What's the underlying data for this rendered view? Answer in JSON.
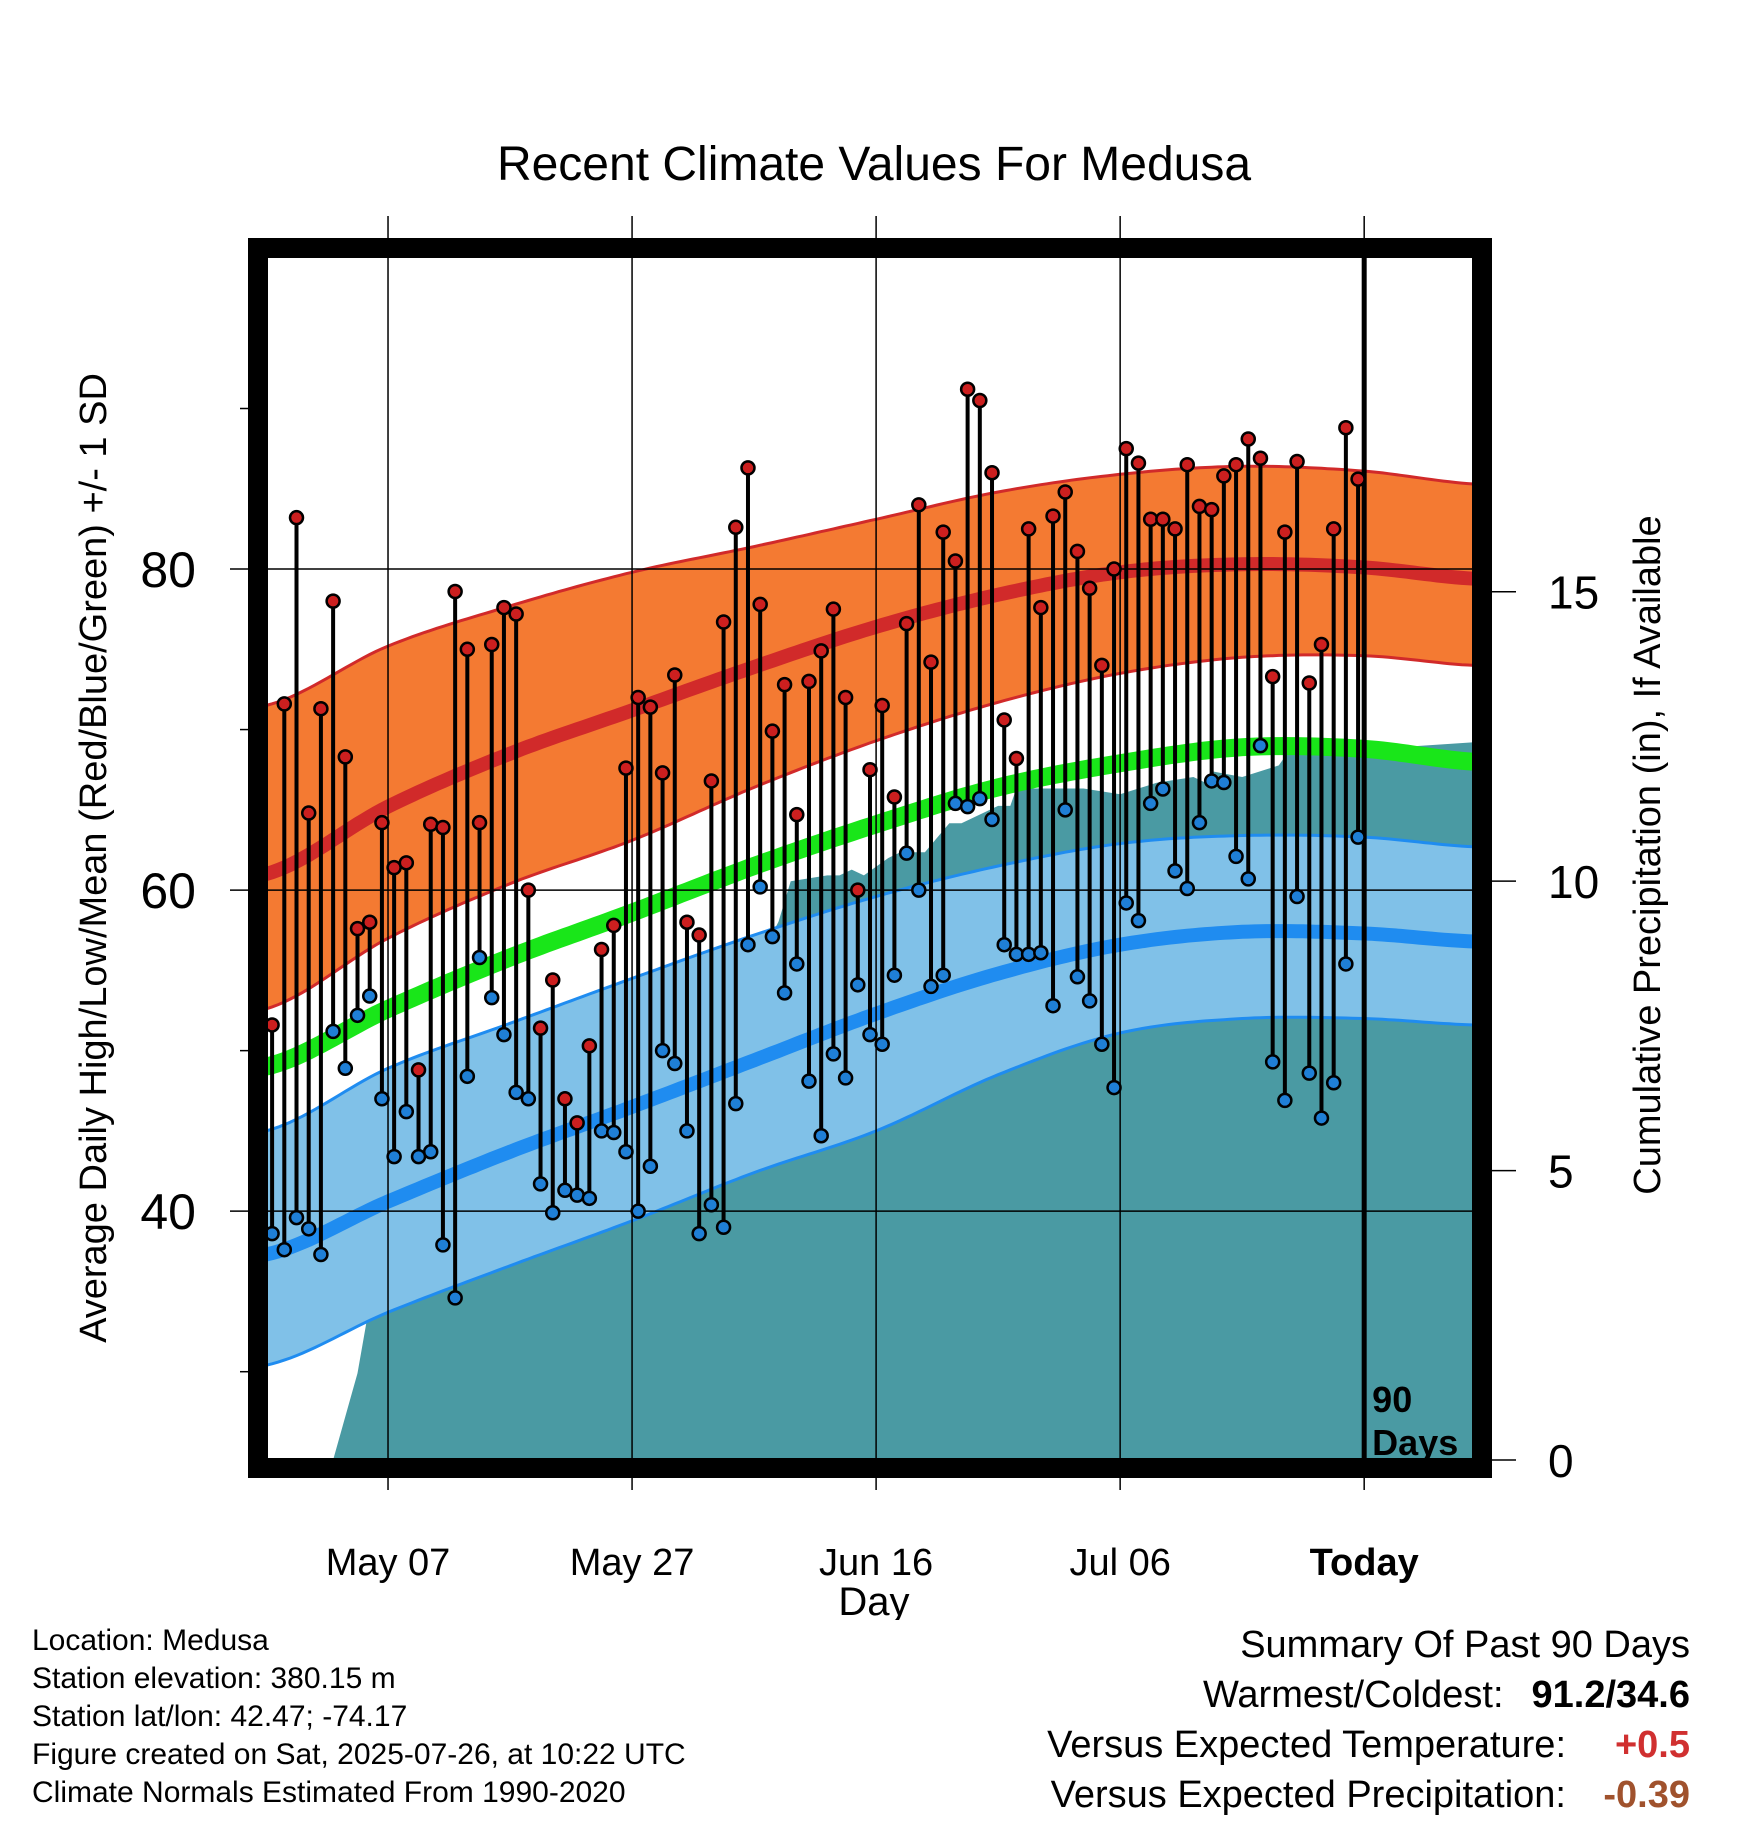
{
  "chart_data": {
    "type": "line",
    "title": "Recent Climate Values For Medusa",
    "xlabel": "Day",
    "ylabel": "Average Daily High/Low/Mean (Red/Blue/Green) +/- 1 SD",
    "y2label": "Cumulative Precipitation (in), If Available",
    "ylim": [
      24.5,
      99.5
    ],
    "y2lim": [
      0,
      20.8
    ],
    "y_ticks": [
      40,
      60,
      80
    ],
    "y2_ticks": [
      0,
      5,
      10,
      15
    ],
    "x_ticks": [
      "May 07",
      "May 27",
      "Jun 16",
      "Jul 06",
      "Today"
    ],
    "x_tick_days": [
      -80,
      -60,
      -40,
      -20,
      0
    ],
    "x_range_days": [
      -90,
      9
    ],
    "today_marker": {
      "line1": "90",
      "line2": "Days"
    },
    "colors": {
      "high_band": "#f47a32",
      "high_mean": "#d12a2a",
      "low_band": "#80c1e8",
      "low_mean": "#1f8cf0",
      "mean": "#19e619",
      "precip": "#4a9aa3",
      "high_point": "#cc1f1f",
      "low_point": "#1f7fd6"
    },
    "normals": {
      "days": [
        -90,
        -80,
        -70,
        -60,
        -50,
        -40,
        -30,
        -20,
        -10,
        0,
        9
      ],
      "high_mean": [
        61,
        65.2,
        68.5,
        71.2,
        73.9,
        76.4,
        78.4,
        79.8,
        80.3,
        80.1,
        79.4
      ],
      "high_upper": [
        71.5,
        75.2,
        77.7,
        79.8,
        81.4,
        83.1,
        84.8,
        85.9,
        86.4,
        86.1,
        85.3
      ],
      "high_lower": [
        52.6,
        57,
        60.4,
        63.1,
        66.4,
        69.3,
        71.7,
        73.5,
        74.5,
        74.6,
        74
      ],
      "mean": [
        49,
        52.6,
        55.8,
        58.6,
        61.5,
        64.1,
        66.4,
        67.9,
        68.9,
        68.8,
        68
      ],
      "low_mean": [
        37.3,
        40.6,
        43.7,
        46.5,
        49.4,
        52.3,
        54.8,
        56.6,
        57.4,
        57.3,
        56.8
      ],
      "low_upper": [
        45,
        48.9,
        51.7,
        54.5,
        57.2,
        59.6,
        61.5,
        62.9,
        63.4,
        63.3,
        62.7
      ],
      "low_lower": [
        30.4,
        33.7,
        36.6,
        39.4,
        42.4,
        45,
        48.5,
        51.1,
        52,
        52,
        51.6
      ]
    },
    "series": [
      {
        "name": "High",
        "values": [
          51.6,
          71.6,
          83.2,
          64.8,
          71.3,
          78.0,
          68.3,
          57.6,
          58.0,
          64.2,
          61.4,
          61.7,
          48.8,
          64.1,
          63.9,
          78.6,
          75.0,
          64.2,
          75.3,
          77.6,
          77.2,
          60.0,
          51.4,
          54.4,
          47.0,
          45.5,
          50.3,
          56.3,
          57.8,
          67.6,
          72.0,
          71.4,
          67.3,
          73.4,
          58.0,
          57.2,
          66.8,
          76.7,
          82.6,
          86.3,
          77.8,
          69.9,
          72.8,
          64.7,
          73.0,
          74.9,
          77.5,
          72.0,
          60.0,
          67.5,
          71.5,
          65.8,
          76.6,
          84.0,
          74.2,
          82.3,
          80.5,
          91.2,
          90.5,
          86.0,
          70.6,
          68.2,
          82.5,
          77.6,
          83.3,
          84.8,
          81.1,
          78.8,
          74.0,
          80.0,
          87.5,
          86.6,
          83.1,
          83.1,
          82.5,
          86.5,
          83.9,
          83.7,
          85.8,
          86.5,
          88.1,
          86.9,
          73.3,
          82.3,
          86.7,
          72.9,
          75.3,
          82.5,
          88.8,
          85.6
        ]
      },
      {
        "name": "Low",
        "values": [
          38.6,
          37.6,
          39.6,
          38.9,
          37.3,
          51.2,
          48.9,
          52.2,
          53.4,
          47.0,
          43.4,
          46.2,
          43.4,
          43.7,
          37.9,
          34.6,
          48.4,
          55.8,
          53.3,
          51.0,
          47.4,
          47.0,
          41.7,
          39.9,
          41.3,
          41.0,
          40.8,
          45.0,
          44.9,
          43.7,
          40.0,
          42.8,
          50.0,
          49.2,
          45.0,
          38.6,
          40.4,
          39.0,
          46.7,
          56.6,
          60.2,
          57.1,
          53.6,
          55.4,
          48.1,
          44.7,
          49.8,
          48.3,
          54.1,
          51.0,
          50.4,
          54.7,
          62.3,
          60.0,
          54.0,
          54.7,
          65.4,
          65.2,
          65.7,
          64.4,
          56.6,
          56.0,
          56.0,
          56.1,
          52.8,
          65.0,
          54.6,
          53.1,
          50.4,
          47.7,
          59.2,
          58.1,
          65.4,
          66.3,
          61.2,
          60.1,
          64.2,
          66.8,
          66.7,
          62.1,
          60.7,
          69.0,
          49.3,
          46.9,
          59.6,
          48.6,
          45.8,
          48.0,
          55.4,
          63.3
        ]
      },
      {
        "name": "Precipitation",
        "days": [
          -84.5,
          -82.5,
          -81.5,
          -81,
          -80,
          -79,
          -78,
          -77.5,
          -77,
          -76,
          -73,
          -70,
          -69,
          -66,
          -64,
          -62,
          -61.5,
          -61,
          -59.5,
          -55.5,
          -55,
          -54.5,
          -53,
          -50,
          -49.5,
          -49,
          -48,
          -47,
          -44,
          -43,
          -42,
          -41,
          -39,
          -38,
          -36,
          -34,
          -33,
          -30,
          -29,
          -28.5,
          -23,
          -20,
          -17,
          -14,
          -13,
          -12.5,
          -10,
          -7,
          -6,
          -4,
          2,
          9
        ],
        "values": [
          0,
          1.5,
          2.7,
          3.2,
          3.5,
          3.7,
          3.7,
          4.5,
          4.7,
          4.8,
          4.8,
          4.9,
          5.0,
          5.0,
          5.0,
          5.4,
          5.6,
          6.1,
          6.3,
          6.3,
          7.6,
          7.8,
          7.7,
          7.7,
          7.9,
          8.9,
          9.3,
          10.0,
          10.1,
          10.1,
          10.2,
          10.1,
          10.4,
          10.5,
          10.5,
          11.0,
          11.0,
          11.3,
          11.3,
          11.6,
          11.6,
          11.5,
          11.7,
          11.8,
          11.7,
          11.9,
          11.8,
          12.0,
          12.3,
          12.4,
          12.3,
          12.4
        ]
      }
    ]
  },
  "info": {
    "location": "Location: Medusa",
    "elevation": "Station elevation: 380.15 m",
    "latlon": "Station lat/lon: 42.47; -74.17",
    "created": "Figure created on Sat, 2025-07-26, at 10:22 UTC",
    "normals": "Climate Normals Estimated From 1990-2020"
  },
  "summary": {
    "heading": "Summary Of Past 90 Days",
    "warm_cold_label": "Warmest/Coldest:",
    "warm_cold_value": "91.2/34.6",
    "temp_label": "Versus Expected Temperature:",
    "temp_value": "+0.5",
    "temp_color": "#d03030",
    "precip_label": "Versus Expected Precipitation:",
    "precip_value": "-0.39",
    "precip_color": "#a0522d"
  }
}
